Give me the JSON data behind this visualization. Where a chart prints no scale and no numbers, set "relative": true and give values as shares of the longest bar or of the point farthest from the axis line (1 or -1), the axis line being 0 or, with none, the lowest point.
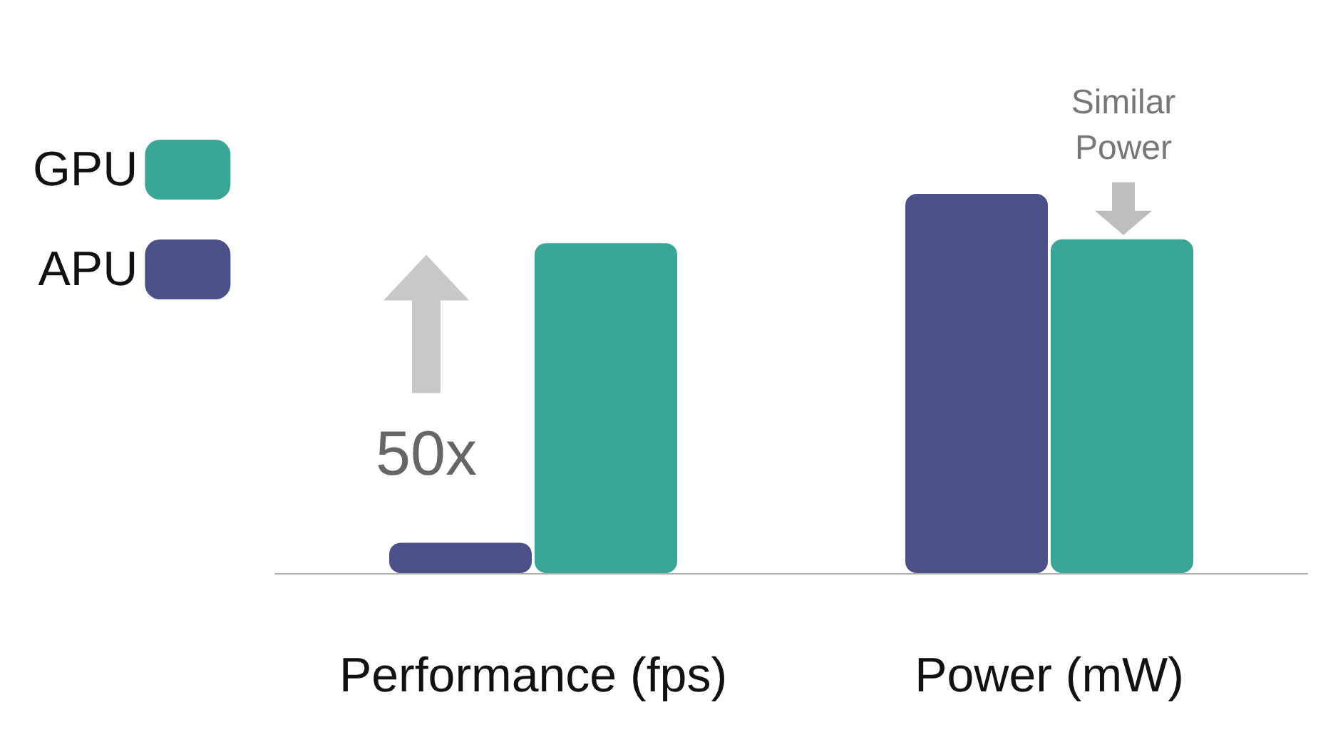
{
  "chart_data": {
    "type": "bar",
    "relative": true,
    "categories": [
      "Performance (fps)",
      "Power (mW)"
    ],
    "series": [
      {
        "name": "APU",
        "color": "#4b5089",
        "values": [
          0.08,
          1
        ]
      },
      {
        "name": "GPU",
        "color": "#3aa698",
        "values": [
          0.87,
          0.88
        ]
      }
    ],
    "legend": "top left",
    "grid": false,
    "annotations": [
      {
        "text": "50x",
        "x": "Performance (fps)",
        "y": 0.08
      },
      {
        "text": "Similar Power",
        "x": "Power (mW)",
        "y": 0.88
      }
    ]
  }
}
